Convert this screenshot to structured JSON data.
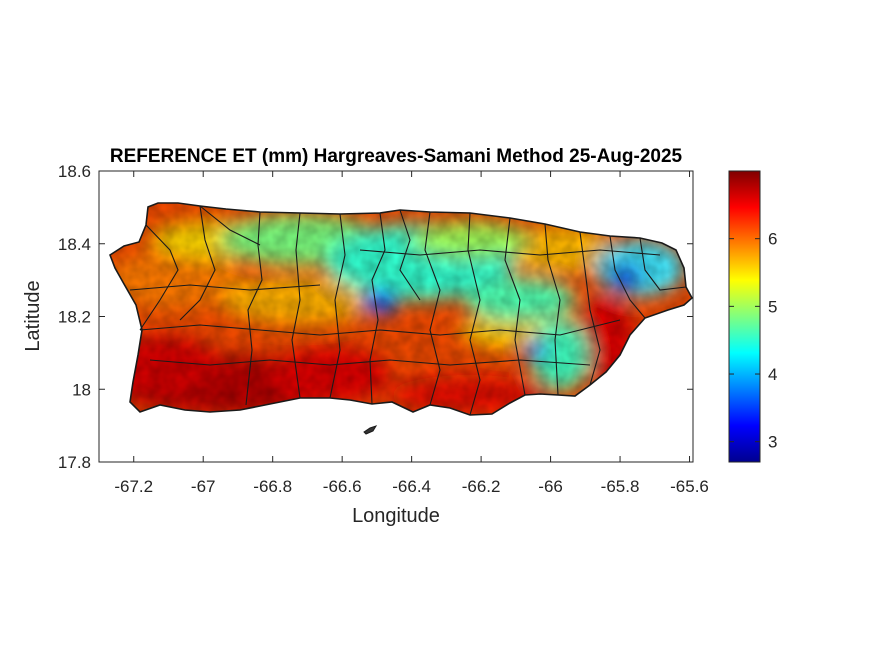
{
  "title": "REFERENCE ET (mm) Hargreaves-Samani Method  25-Aug-2025",
  "x_axis": {
    "label": "Longitude",
    "range": [
      -67.3,
      -65.59
    ],
    "ticks": [
      -67.2,
      -67,
      -66.8,
      -66.6,
      -66.4,
      -66.2,
      -66,
      -65.8,
      -65.6
    ],
    "tick_labels": [
      "-67.2",
      "-67",
      "-66.8",
      "-66.6",
      "-66.4",
      "-66.2",
      "-66",
      "-65.8",
      "-65.6"
    ]
  },
  "y_axis": {
    "label": "Latitude",
    "range": [
      17.8,
      18.6
    ],
    "ticks": [
      17.8,
      18,
      18.2,
      18.4,
      18.6
    ],
    "tick_labels": [
      "17.8",
      "18",
      "18.2",
      "18.4",
      "18.6"
    ]
  },
  "colorbar": {
    "range": [
      2.7,
      7.0
    ],
    "ticks": [
      3,
      4,
      5,
      6
    ],
    "tick_labels": [
      "3",
      "4",
      "5",
      "6"
    ],
    "colormap": "jet"
  },
  "colors": {
    "text": "#262626",
    "axes": "#262626",
    "boundary": "#1a1a1a"
  }
}
